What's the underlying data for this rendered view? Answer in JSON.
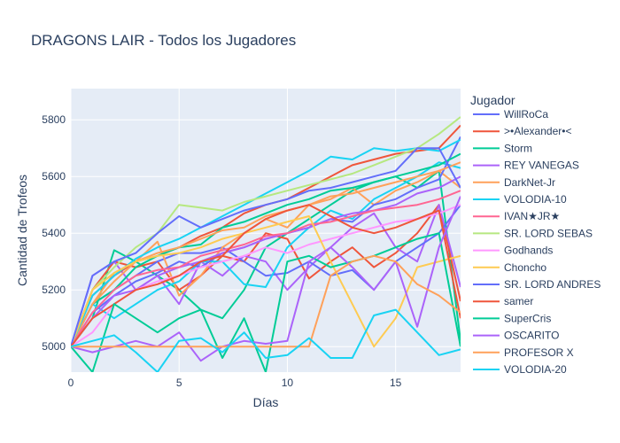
{
  "chart_data": {
    "type": "line",
    "title": "DRAGONS LAIR - Todos los Jugadores",
    "xlabel": "Días",
    "ylabel": "Cantidad de Trofeos",
    "xlim": [
      0,
      18
    ],
    "ylim": [
      4910,
      5910
    ],
    "xticks": [
      0,
      5,
      10,
      15
    ],
    "yticks": [
      5000,
      5200,
      5400,
      5600,
      5800
    ],
    "grid": true,
    "legend_title": "Jugador",
    "legend_position": "right",
    "x": [
      0,
      1,
      2,
      3,
      4,
      5,
      6,
      7,
      8,
      9,
      10,
      11,
      12,
      13,
      14,
      15,
      16,
      17,
      18
    ],
    "series": [
      {
        "name": "WillRoCa",
        "color": "#636EFA",
        "values": [
          5000,
          5120,
          5180,
          5230,
          5260,
          5300,
          5280,
          5330,
          5350,
          5380,
          5400,
          5420,
          5450,
          5440,
          5500,
          5520,
          5560,
          5590,
          5740
        ]
      },
      {
        "name": ">•Alexander•<",
        "color": "#EF553B",
        "values": [
          5000,
          5180,
          5250,
          5300,
          5320,
          5350,
          5390,
          5420,
          5470,
          5500,
          5520,
          5560,
          5600,
          5640,
          5660,
          5680,
          5690,
          5700,
          5780
        ]
      },
      {
        "name": "Storm",
        "color": "#00CC96",
        "values": [
          5000,
          5150,
          5200,
          5280,
          5320,
          5350,
          5360,
          5420,
          5440,
          5470,
          5500,
          5520,
          5550,
          5560,
          5580,
          5600,
          5620,
          5640,
          5680
        ]
      },
      {
        "name": "REY VANEGAS",
        "color": "#AB63FA",
        "values": [
          5000,
          5100,
          5180,
          5200,
          5250,
          5280,
          5300,
          5330,
          5350,
          5380,
          5400,
          5420,
          5450,
          5470,
          5480,
          5500,
          5540,
          5560,
          5600
        ]
      },
      {
        "name": "DarkNet-Jr",
        "color": "#FFA15A",
        "values": [
          5000,
          5150,
          5230,
          5300,
          5330,
          5350,
          5380,
          5410,
          5420,
          5460,
          5480,
          5500,
          5530,
          5540,
          5560,
          5580,
          5600,
          5620,
          5650
        ]
      },
      {
        "name": "VOLODIA-10",
        "color": "#19D3F3",
        "values": [
          5000,
          5180,
          5250,
          5310,
          5350,
          5380,
          5420,
          5460,
          5500,
          5540,
          5580,
          5620,
          5670,
          5660,
          5700,
          5690,
          5700,
          5690,
          5730
        ]
      },
      {
        "name": "IVAN★JR★",
        "color": "#FF6692",
        "values": [
          5000,
          5120,
          5200,
          5250,
          5270,
          5280,
          5320,
          5340,
          5360,
          5390,
          5400,
          5430,
          5440,
          5460,
          5480,
          5490,
          5500,
          5520,
          5550
        ]
      },
      {
        "name": "SR. LORD SEBAS",
        "color": "#B6E880",
        "values": [
          5000,
          5200,
          5280,
          5350,
          5400,
          5500,
          5490,
          5480,
          5510,
          5530,
          5550,
          5570,
          5590,
          5610,
          5640,
          5670,
          5700,
          5750,
          5810
        ]
      },
      {
        "name": "Godhands",
        "color": "#FF97FF",
        "values": [
          5000,
          5050,
          5150,
          5200,
          5230,
          5250,
          5280,
          5300,
          5320,
          5350,
          5330,
          5360,
          5380,
          5400,
          5420,
          5440,
          5450,
          5470,
          5500
        ]
      },
      {
        "name": "Choncho",
        "color": "#FECB52",
        "values": [
          5000,
          5200,
          5260,
          5300,
          5320,
          5330,
          5350,
          5380,
          5400,
          5420,
          5440,
          5460,
          5300,
          5150,
          5000,
          5100,
          5280,
          5300,
          5320
        ]
      },
      {
        "name": "SR. LORD ANDRES",
        "color": "#636EFA",
        "values": [
          5000,
          5250,
          5300,
          5330,
          5400,
          5460,
          5420,
          5450,
          5480,
          5500,
          5520,
          5550,
          5560,
          5580,
          5600,
          5620,
          5700,
          5700,
          5560
        ]
      },
      {
        "name": "samer",
        "color": "#EF553B",
        "values": [
          5000,
          5100,
          5150,
          5200,
          5220,
          5250,
          5300,
          5320,
          5400,
          5450,
          5480,
          5500,
          5460,
          5420,
          5400,
          5420,
          5450,
          5480,
          5100
        ]
      },
      {
        "name": "SuperCris",
        "color": "#00CC96",
        "values": [
          5000,
          4910,
          5150,
          5100,
          5050,
          5100,
          5130,
          4960,
          5100,
          4910,
          5300,
          5320,
          5280,
          5300,
          5320,
          5350,
          5380,
          5400,
          5000
        ]
      },
      {
        "name": "OSCARITO",
        "color": "#AB63FA",
        "values": [
          5000,
          4980,
          5000,
          5020,
          5000,
          5050,
          4950,
          5000,
          5020,
          5010,
          5020,
          5300,
          5350,
          5280,
          5200,
          5300,
          5070,
          5350,
          5530
        ]
      },
      {
        "name": "PROFESOR X",
        "color": "#FFA15A",
        "values": [
          5000,
          5000,
          5000,
          5000,
          5000,
          5000,
          5000,
          5000,
          5000,
          5000,
          5000,
          5000,
          5250,
          5300,
          5320,
          5300,
          5220,
          5180,
          5120
        ]
      },
      {
        "name": "VOLODIA-20",
        "color": "#19D3F3",
        "values": [
          5000,
          5020,
          5040,
          4980,
          4910,
          5020,
          5030,
          4980,
          5050,
          4960,
          4970,
          5030,
          4960,
          4960,
          5110,
          5130,
          5050,
          4970,
          4990
        ]
      }
    ],
    "extra_lines": [
      {
        "color": "#00CC96",
        "values": [
          5000,
          5100,
          5340,
          5300,
          5250,
          5200,
          5130,
          5100,
          5200,
          5350,
          5400,
          5450,
          5500,
          5550,
          5580,
          5600,
          5560,
          5620,
          5020
        ]
      },
      {
        "color": "#EF553B",
        "values": [
          5000,
          5200,
          5300,
          5280,
          5300,
          5200,
          5250,
          5320,
          5300,
          5400,
          5380,
          5240,
          5300,
          5350,
          5280,
          5330,
          5400,
          5500,
          5160
        ]
      },
      {
        "color": "#AB63FA",
        "values": [
          5000,
          5250,
          5300,
          5200,
          5250,
          5150,
          5300,
          5250,
          5320,
          5300,
          5200,
          5280,
          5350,
          5420,
          5470,
          5350,
          5300,
          5500,
          5210
        ]
      },
      {
        "color": "#636EFA",
        "values": [
          5000,
          5150,
          5200,
          5250,
          5300,
          5330,
          5330,
          5350,
          5300,
          5250,
          5260,
          5300,
          5250,
          5270,
          5200,
          5300,
          5350,
          5400,
          5500
        ]
      },
      {
        "color": "#FFA15A",
        "values": [
          5000,
          5150,
          5260,
          5300,
          5370,
          5180,
          5250,
          5350,
          5400,
          5450,
          5420,
          5500,
          5520,
          5560,
          5500,
          5550,
          5580,
          5620,
          5560
        ]
      },
      {
        "color": "#19D3F3",
        "values": [
          5000,
          5150,
          5100,
          5150,
          5200,
          5230,
          5300,
          5300,
          5220,
          5210,
          5350,
          5420,
          5480,
          5450,
          5520,
          5560,
          5600,
          5650,
          5630
        ]
      }
    ]
  }
}
